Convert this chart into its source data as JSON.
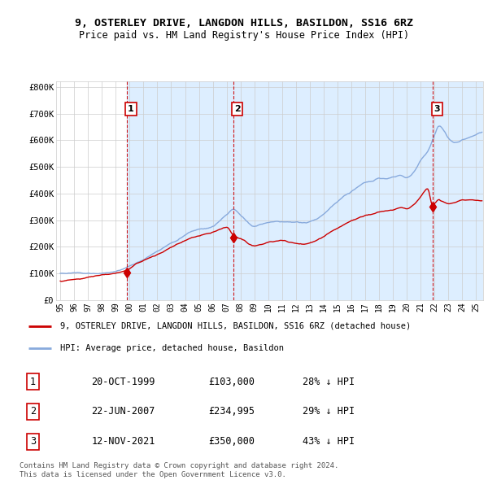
{
  "title1": "9, OSTERLEY DRIVE, LANGDON HILLS, BASILDON, SS16 6RZ",
  "title2": "Price paid vs. HM Land Registry's House Price Index (HPI)",
  "sale_info": [
    [
      "1",
      "20-OCT-1999",
      "£103,000",
      "28% ↓ HPI"
    ],
    [
      "2",
      "22-JUN-2007",
      "£234,995",
      "29% ↓ HPI"
    ],
    [
      "3",
      "12-NOV-2021",
      "£350,000",
      "43% ↓ HPI"
    ]
  ],
  "legend_line1": "9, OSTERLEY DRIVE, LANGDON HILLS, BASILDON, SS16 6RZ (detached house)",
  "legend_line2": "HPI: Average price, detached house, Basildon",
  "footer1": "Contains HM Land Registry data © Crown copyright and database right 2024.",
  "footer2": "This data is licensed under the Open Government Licence v3.0.",
  "bg_color": "#ffffff",
  "plot_bg_color": "#ffffff",
  "shade_color": "#ddeeff",
  "grid_color": "#cccccc",
  "red_color": "#cc0000",
  "blue_color": "#88aadd",
  "vline_color": "#cc0000",
  "ylim": [
    0,
    820000
  ],
  "xlim_left": 1994.7,
  "xlim_right": 2025.5,
  "yticks": [
    0,
    100000,
    200000,
    300000,
    400000,
    500000,
    600000,
    700000,
    800000
  ],
  "ytick_labels": [
    "£0",
    "£100K",
    "£200K",
    "£300K",
    "£400K",
    "£500K",
    "£600K",
    "£700K",
    "£800K"
  ],
  "sale_year_nums": [
    1999.8,
    2007.47,
    2021.87
  ],
  "sale_prices": [
    103000,
    234995,
    350000
  ],
  "shade_ranges": [
    [
      1999.8,
      2007.47
    ],
    [
      2007.47,
      2021.87
    ],
    [
      2021.87,
      2025.5
    ]
  ]
}
